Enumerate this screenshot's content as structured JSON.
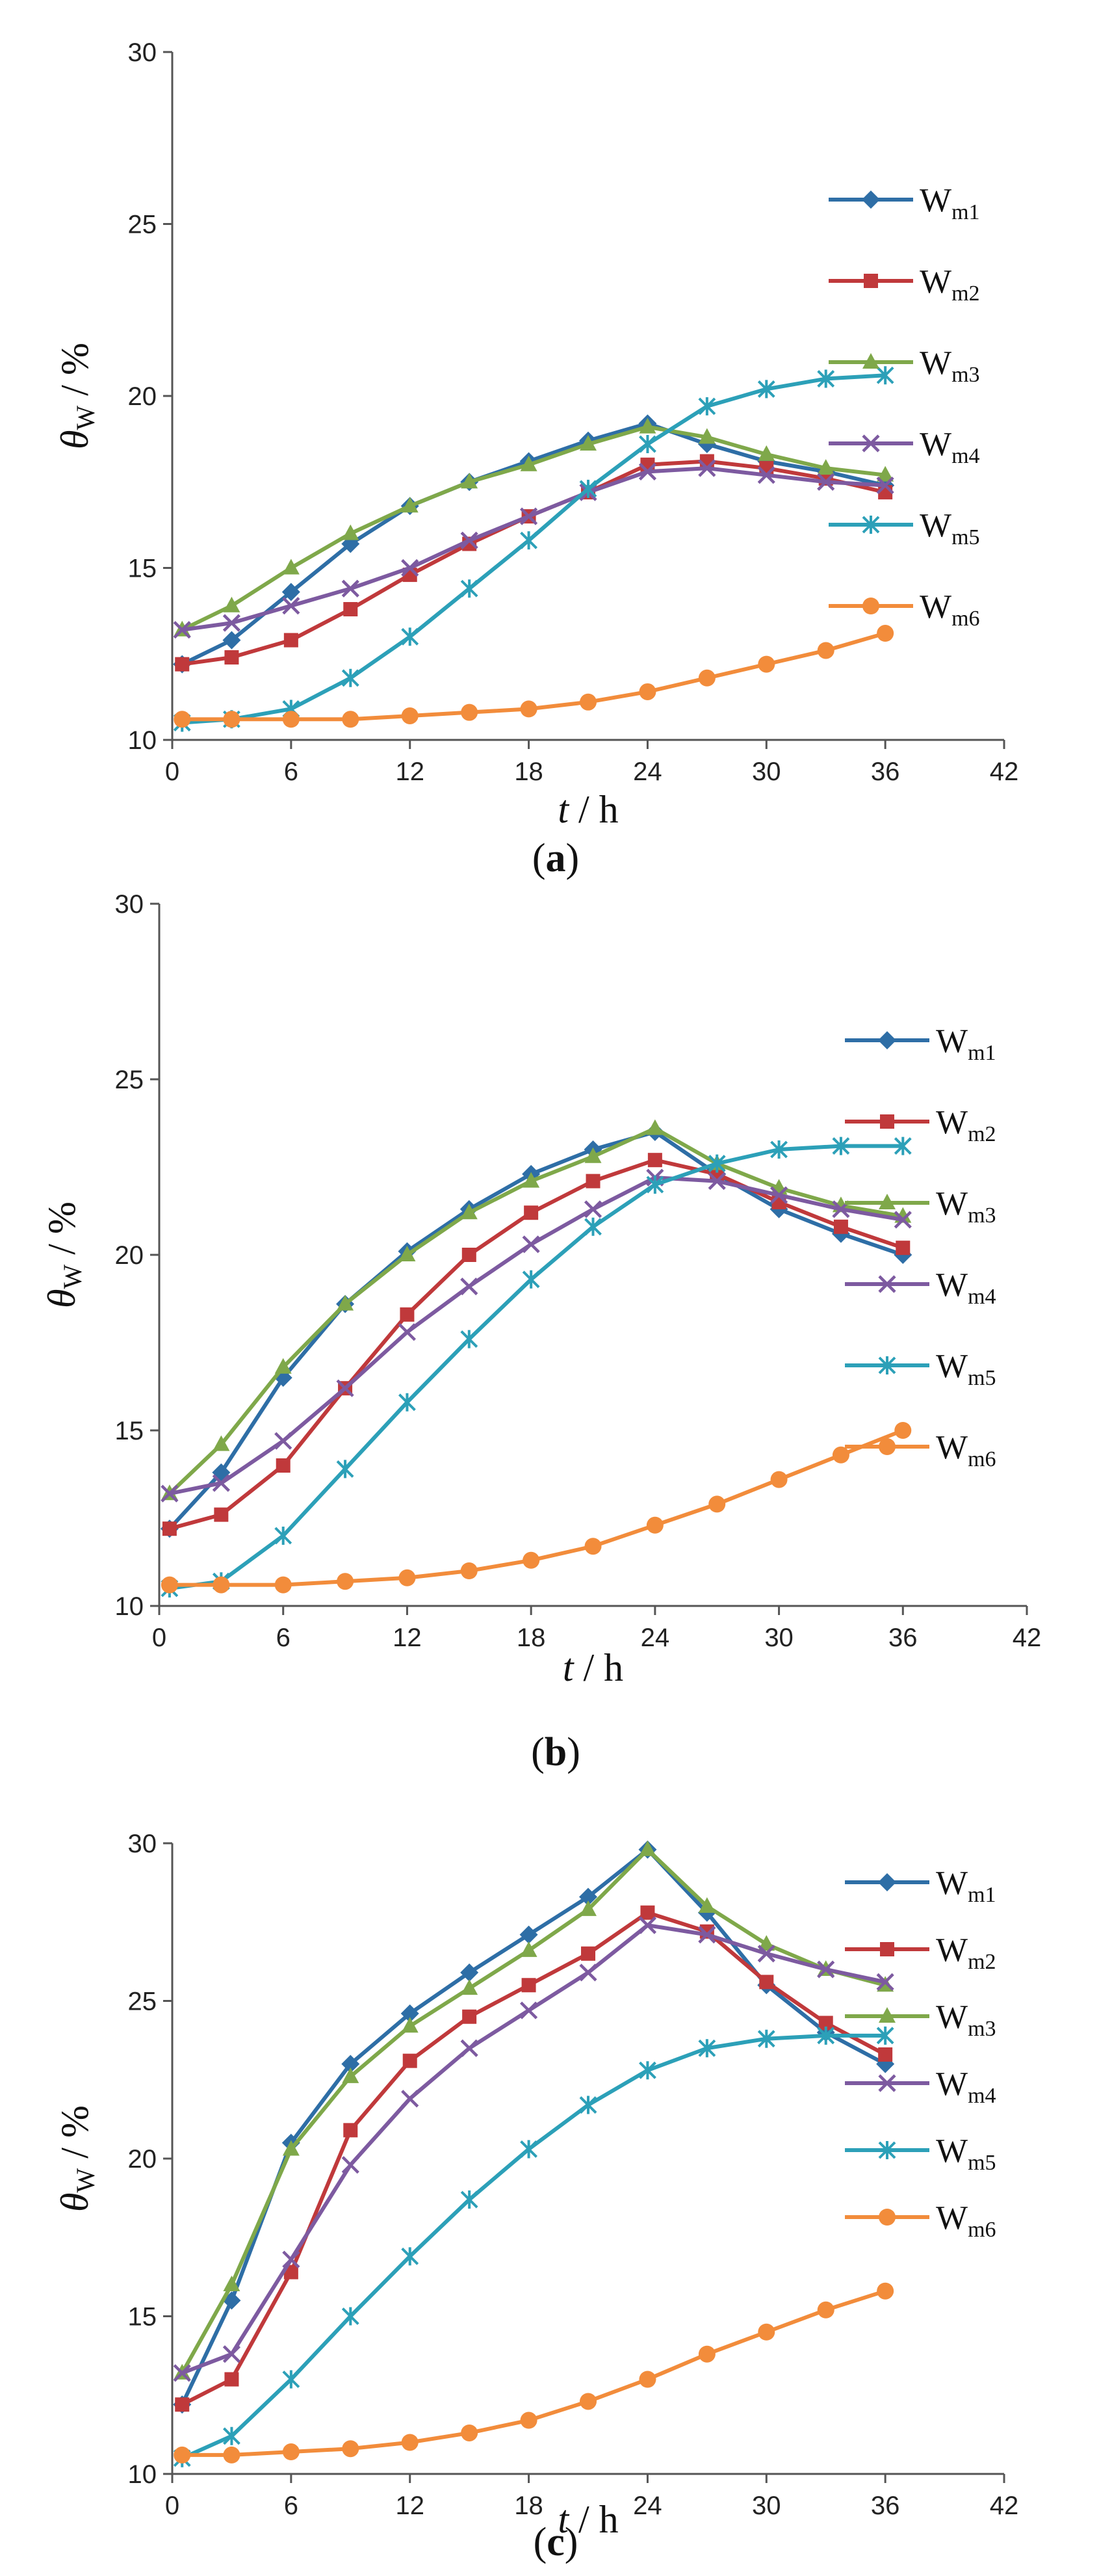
{
  "x_axis_label": {
    "var": "t",
    "unit": " / h"
  },
  "y_axis_label": {
    "var": "θ",
    "sub": "W",
    "unit": " / %"
  },
  "legend_entries": [
    {
      "main": "W",
      "sub": "m1"
    },
    {
      "main": "W",
      "sub": "m2"
    },
    {
      "main": "W",
      "sub": "m3"
    },
    {
      "main": "W",
      "sub": "m4"
    },
    {
      "main": "W",
      "sub": "m5"
    },
    {
      "main": "W",
      "sub": "m6"
    }
  ],
  "captions": [
    {
      "open": "(",
      "letter": "a",
      "close": ")"
    },
    {
      "open": "(",
      "letter": "b",
      "close": ")"
    },
    {
      "open": "(",
      "letter": "c",
      "close": ")"
    }
  ],
  "colors": {
    "Wm1": "#2e6ea6",
    "Wm2": "#c0393b",
    "Wm3": "#7fa84a",
    "Wm4": "#7d5aa0",
    "Wm5": "#2ca0b8",
    "Wm6": "#f28c3b"
  },
  "chart_data": [
    {
      "type": "line",
      "panel": "a",
      "xlabel": "t / h",
      "ylabel": "θW / %",
      "xlim": [
        0,
        42
      ],
      "ylim": [
        10,
        30
      ],
      "xticks": [
        0,
        6,
        12,
        18,
        24,
        30,
        36,
        42
      ],
      "yticks": [
        10,
        15,
        20,
        25,
        30
      ],
      "legend_position": "right",
      "series": [
        {
          "name": "Wm1",
          "marker": "diamond",
          "points": [
            [
              0.5,
              12.2
            ],
            [
              3,
              12.9
            ],
            [
              6,
              14.3
            ],
            [
              9,
              15.7
            ],
            [
              12,
              16.8
            ],
            [
              15,
              17.5
            ],
            [
              18,
              18.1
            ],
            [
              21,
              18.7
            ],
            [
              24,
              19.2
            ],
            [
              27,
              18.6
            ],
            [
              30,
              18.1
            ],
            [
              33,
              17.8
            ],
            [
              36,
              17.4
            ]
          ]
        },
        {
          "name": "Wm2",
          "marker": "square",
          "points": [
            [
              0.5,
              12.2
            ],
            [
              3,
              12.4
            ],
            [
              6,
              12.9
            ],
            [
              9,
              13.8
            ],
            [
              12,
              14.8
            ],
            [
              15,
              15.7
            ],
            [
              18,
              16.5
            ],
            [
              21,
              17.2
            ],
            [
              24,
              18.0
            ],
            [
              27,
              18.1
            ],
            [
              30,
              17.9
            ],
            [
              33,
              17.6
            ],
            [
              36,
              17.2
            ]
          ]
        },
        {
          "name": "Wm3",
          "marker": "triangle",
          "points": [
            [
              0.5,
              13.2
            ],
            [
              3,
              13.9
            ],
            [
              6,
              15.0
            ],
            [
              9,
              16.0
            ],
            [
              12,
              16.8
            ],
            [
              15,
              17.5
            ],
            [
              18,
              18.0
            ],
            [
              21,
              18.6
            ],
            [
              24,
              19.1
            ],
            [
              27,
              18.8
            ],
            [
              30,
              18.3
            ],
            [
              33,
              17.9
            ],
            [
              36,
              17.7
            ]
          ]
        },
        {
          "name": "Wm4",
          "marker": "x",
          "points": [
            [
              0.5,
              13.2
            ],
            [
              3,
              13.4
            ],
            [
              6,
              13.9
            ],
            [
              9,
              14.4
            ],
            [
              12,
              15.0
            ],
            [
              15,
              15.8
            ],
            [
              18,
              16.5
            ],
            [
              21,
              17.2
            ],
            [
              24,
              17.8
            ],
            [
              27,
              17.9
            ],
            [
              30,
              17.7
            ],
            [
              33,
              17.5
            ],
            [
              36,
              17.4
            ]
          ]
        },
        {
          "name": "Wm5",
          "marker": "asterisk",
          "points": [
            [
              0.5,
              10.5
            ],
            [
              3,
              10.6
            ],
            [
              6,
              10.9
            ],
            [
              9,
              11.8
            ],
            [
              12,
              13.0
            ],
            [
              15,
              14.4
            ],
            [
              18,
              15.8
            ],
            [
              21,
              17.3
            ],
            [
              24,
              18.6
            ],
            [
              27,
              19.7
            ],
            [
              30,
              20.2
            ],
            [
              33,
              20.5
            ],
            [
              36,
              20.6
            ]
          ]
        },
        {
          "name": "Wm6",
          "marker": "circle",
          "points": [
            [
              0.5,
              10.6
            ],
            [
              3,
              10.6
            ],
            [
              6,
              10.6
            ],
            [
              9,
              10.6
            ],
            [
              12,
              10.7
            ],
            [
              15,
              10.8
            ],
            [
              18,
              10.9
            ],
            [
              21,
              11.1
            ],
            [
              24,
              11.4
            ],
            [
              27,
              11.8
            ],
            [
              30,
              12.2
            ],
            [
              33,
              12.6
            ],
            [
              36,
              13.1
            ]
          ]
        }
      ]
    },
    {
      "type": "line",
      "panel": "b",
      "xlabel": "t / h",
      "ylabel": "θW / %",
      "xlim": [
        0,
        42
      ],
      "ylim": [
        10,
        30
      ],
      "xticks": [
        0,
        6,
        12,
        18,
        24,
        30,
        36,
        42
      ],
      "yticks": [
        10,
        15,
        20,
        25,
        30
      ],
      "legend_position": "right",
      "series": [
        {
          "name": "Wm1",
          "marker": "diamond",
          "points": [
            [
              0.5,
              12.2
            ],
            [
              3,
              13.8
            ],
            [
              6,
              16.5
            ],
            [
              9,
              18.6
            ],
            [
              12,
              20.1
            ],
            [
              15,
              21.3
            ],
            [
              18,
              22.3
            ],
            [
              21,
              23.0
            ],
            [
              24,
              23.5
            ],
            [
              27,
              22.3
            ],
            [
              30,
              21.3
            ],
            [
              33,
              20.6
            ],
            [
              36,
              20.0
            ]
          ]
        },
        {
          "name": "Wm2",
          "marker": "square",
          "points": [
            [
              0.5,
              12.2
            ],
            [
              3,
              12.6
            ],
            [
              6,
              14.0
            ],
            [
              9,
              16.2
            ],
            [
              12,
              18.3
            ],
            [
              15,
              20.0
            ],
            [
              18,
              21.2
            ],
            [
              21,
              22.1
            ],
            [
              24,
              22.7
            ],
            [
              27,
              22.3
            ],
            [
              30,
              21.5
            ],
            [
              33,
              20.8
            ],
            [
              36,
              20.2
            ]
          ]
        },
        {
          "name": "Wm3",
          "marker": "triangle",
          "points": [
            [
              0.5,
              13.2
            ],
            [
              3,
              14.6
            ],
            [
              6,
              16.8
            ],
            [
              9,
              18.6
            ],
            [
              12,
              20.0
            ],
            [
              15,
              21.2
            ],
            [
              18,
              22.1
            ],
            [
              21,
              22.8
            ],
            [
              24,
              23.6
            ],
            [
              27,
              22.6
            ],
            [
              30,
              21.9
            ],
            [
              33,
              21.4
            ],
            [
              36,
              21.1
            ]
          ]
        },
        {
          "name": "Wm4",
          "marker": "x",
          "points": [
            [
              0.5,
              13.2
            ],
            [
              3,
              13.5
            ],
            [
              6,
              14.7
            ],
            [
              9,
              16.2
            ],
            [
              12,
              17.8
            ],
            [
              15,
              19.1
            ],
            [
              18,
              20.3
            ],
            [
              21,
              21.3
            ],
            [
              24,
              22.2
            ],
            [
              27,
              22.1
            ],
            [
              30,
              21.7
            ],
            [
              33,
              21.3
            ],
            [
              36,
              21.0
            ]
          ]
        },
        {
          "name": "Wm5",
          "marker": "asterisk",
          "points": [
            [
              0.5,
              10.5
            ],
            [
              3,
              10.7
            ],
            [
              6,
              12.0
            ],
            [
              9,
              13.9
            ],
            [
              12,
              15.8
            ],
            [
              15,
              17.6
            ],
            [
              18,
              19.3
            ],
            [
              21,
              20.8
            ],
            [
              24,
              22.0
            ],
            [
              27,
              22.6
            ],
            [
              30,
              23.0
            ],
            [
              33,
              23.1
            ],
            [
              36,
              23.1
            ]
          ]
        },
        {
          "name": "Wm6",
          "marker": "circle",
          "points": [
            [
              0.5,
              10.6
            ],
            [
              3,
              10.6
            ],
            [
              6,
              10.6
            ],
            [
              9,
              10.7
            ],
            [
              12,
              10.8
            ],
            [
              15,
              11.0
            ],
            [
              18,
              11.3
            ],
            [
              21,
              11.7
            ],
            [
              24,
              12.3
            ],
            [
              27,
              12.9
            ],
            [
              30,
              13.6
            ],
            [
              33,
              14.3
            ],
            [
              36,
              15.0
            ]
          ]
        }
      ]
    },
    {
      "type": "line",
      "panel": "c",
      "xlabel": "t / h",
      "ylabel": "θW / %",
      "xlim": [
        0,
        42
      ],
      "ylim": [
        10,
        30
      ],
      "xticks": [
        0,
        6,
        12,
        18,
        24,
        30,
        36,
        42
      ],
      "yticks": [
        10,
        15,
        20,
        25,
        30
      ],
      "legend_position": "right",
      "series": [
        {
          "name": "Wm1",
          "marker": "diamond",
          "points": [
            [
              0.5,
              12.2
            ],
            [
              3,
              15.5
            ],
            [
              6,
              20.5
            ],
            [
              9,
              23.0
            ],
            [
              12,
              24.6
            ],
            [
              15,
              25.9
            ],
            [
              18,
              27.1
            ],
            [
              21,
              28.3
            ],
            [
              24,
              29.8
            ],
            [
              27,
              27.8
            ],
            [
              30,
              25.5
            ],
            [
              33,
              24.0
            ],
            [
              36,
              23.0
            ]
          ]
        },
        {
          "name": "Wm2",
          "marker": "square",
          "points": [
            [
              0.5,
              12.2
            ],
            [
              3,
              13.0
            ],
            [
              6,
              16.4
            ],
            [
              9,
              20.9
            ],
            [
              12,
              23.1
            ],
            [
              15,
              24.5
            ],
            [
              18,
              25.5
            ],
            [
              21,
              26.5
            ],
            [
              24,
              27.8
            ],
            [
              27,
              27.2
            ],
            [
              30,
              25.6
            ],
            [
              33,
              24.3
            ],
            [
              36,
              23.3
            ]
          ]
        },
        {
          "name": "Wm3",
          "marker": "triangle",
          "points": [
            [
              0.5,
              13.2
            ],
            [
              3,
              16.0
            ],
            [
              6,
              20.3
            ],
            [
              9,
              22.6
            ],
            [
              12,
              24.2
            ],
            [
              15,
              25.4
            ],
            [
              18,
              26.6
            ],
            [
              21,
              27.9
            ],
            [
              24,
              29.8
            ],
            [
              27,
              28.0
            ],
            [
              30,
              26.8
            ],
            [
              33,
              26.0
            ],
            [
              36,
              25.5
            ]
          ]
        },
        {
          "name": "Wm4",
          "marker": "x",
          "points": [
            [
              0.5,
              13.2
            ],
            [
              3,
              13.8
            ],
            [
              6,
              16.8
            ],
            [
              9,
              19.8
            ],
            [
              12,
              21.9
            ],
            [
              15,
              23.5
            ],
            [
              18,
              24.7
            ],
            [
              21,
              25.9
            ],
            [
              24,
              27.4
            ],
            [
              27,
              27.1
            ],
            [
              30,
              26.5
            ],
            [
              33,
              26.0
            ],
            [
              36,
              25.6
            ]
          ]
        },
        {
          "name": "Wm5",
          "marker": "asterisk",
          "points": [
            [
              0.5,
              10.5
            ],
            [
              3,
              11.2
            ],
            [
              6,
              13.0
            ],
            [
              9,
              15.0
            ],
            [
              12,
              16.9
            ],
            [
              15,
              18.7
            ],
            [
              18,
              20.3
            ],
            [
              21,
              21.7
            ],
            [
              24,
              22.8
            ],
            [
              27,
              23.5
            ],
            [
              30,
              23.8
            ],
            [
              33,
              23.9
            ],
            [
              36,
              23.9
            ]
          ]
        },
        {
          "name": "Wm6",
          "marker": "circle",
          "points": [
            [
              0.5,
              10.6
            ],
            [
              3,
              10.6
            ],
            [
              6,
              10.7
            ],
            [
              9,
              10.8
            ],
            [
              12,
              11.0
            ],
            [
              15,
              11.3
            ],
            [
              18,
              11.7
            ],
            [
              21,
              12.3
            ],
            [
              24,
              13.0
            ],
            [
              27,
              13.8
            ],
            [
              30,
              14.5
            ],
            [
              33,
              15.2
            ],
            [
              36,
              15.8
            ]
          ]
        }
      ]
    }
  ]
}
